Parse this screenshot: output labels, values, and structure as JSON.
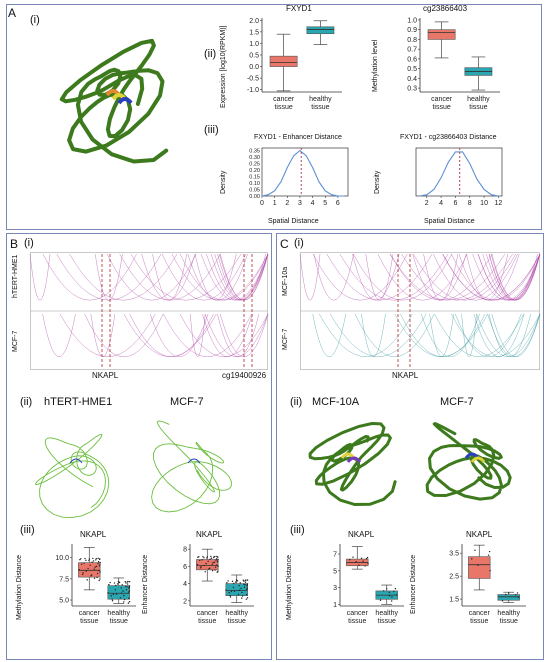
{
  "panels": {
    "A": {
      "letter": "A",
      "sub_i": "(i)",
      "sub_ii": "(ii)",
      "sub_iii": "(iii)",
      "fxyd1": {
        "title": "FXYD1",
        "ylabel": "Expression [log10(RPKM)]",
        "yticks": [
          "2.0",
          "1.5",
          "1.0",
          "0.5",
          "0.0",
          "-0.5",
          "-1.0"
        ],
        "xcats": [
          "cancer\ntissue",
          "healthy\ntissue"
        ]
      },
      "cg": {
        "title": "cg23866403",
        "ylabel": "Methylation level",
        "yticks": [
          "1.0",
          "0.9",
          "0.8",
          "0.7",
          "0.6",
          "0.5",
          "0.4",
          "0.3"
        ],
        "xcats": [
          "cancer\ntissue",
          "healthy\ntissue"
        ]
      },
      "kde1": {
        "title": "FXYD1 - Enhancer Distance",
        "ylabel": "Density",
        "xlabel": "Spatial Distance",
        "xticks": [
          "0",
          "1",
          "2",
          "3",
          "4",
          "5",
          "6"
        ],
        "yticks": [
          "0.35",
          "0.30",
          "0.25",
          "0.20",
          "0.15",
          "0.10",
          "0.05",
          "0.00"
        ]
      },
      "kde2": {
        "title": "FXYD1 - cg23866403 Distance",
        "ylabel": "Density",
        "xlabel": "Spatial Distance",
        "xticks": [
          "2",
          "4",
          "6",
          "8",
          "10",
          "12"
        ]
      }
    },
    "B": {
      "letter": "B",
      "sub_i": "(i)",
      "track1": "hTERT-HME1",
      "track2": "MCF-7",
      "gene": "NKAPL",
      "probe": "cg19400926",
      "sub_ii": "(ii)",
      "struct1": "hTERT-HME1",
      "struct2": "MCF-7",
      "sub_iii": "(iii)",
      "box1": {
        "title": "NKAPL",
        "ylabel": "Methylation Distance",
        "yticks": [
          "10.0",
          "7.5",
          "5.0"
        ],
        "xcats": [
          "cancer\ntissue",
          "healthy\ntissue"
        ]
      },
      "box2": {
        "title": "NKAPL",
        "ylabel": "Enhancer Distance",
        "yticks": [
          "8",
          "6",
          "4",
          "2"
        ],
        "xcats": [
          "cancer\ntissue",
          "healthy\ntissue"
        ]
      }
    },
    "C": {
      "letter": "C",
      "sub_i": "(i)",
      "track1": "MCF-10a",
      "track2": "MCF-7",
      "gene": "NKAPL",
      "sub_ii": "(ii)",
      "struct1": "MCF-10A",
      "struct2": "MCF-7",
      "sub_iii": "(iii)",
      "box1": {
        "title": "NKAPL",
        "ylabel": "Methylation Distance",
        "yticks": [
          "7",
          "5",
          "3",
          "1"
        ],
        "xcats": [
          "cancer\ntissue",
          "healthy\ntissue"
        ]
      },
      "box2": {
        "title": "NKAPL",
        "ylabel": "Enhancer Distance",
        "yticks": [
          "3.5",
          "2.5",
          "1.5"
        ],
        "xcats": [
          "cancer\ntissue",
          "healthy\ntissue"
        ]
      }
    }
  },
  "colors": {
    "cancer": "#e8776a",
    "healthy": "#2aa6b0",
    "mean_line": "#b0304a",
    "kde": "#5d8fd6",
    "structure": "#3d7a1e",
    "arc_pink": "#b04aa8",
    "arc_teal": "#3a9aa0"
  },
  "chart_data": [
    {
      "type": "box",
      "title": "FXYD1",
      "ylabel": "Expression [log10(RPKM)]",
      "categories": [
        "cancer tissue",
        "healthy tissue"
      ],
      "ylim": [
        -1.1,
        2.1
      ],
      "series": [
        {
          "name": "cancer tissue",
          "whisker_low": -1.05,
          "q1": 0.0,
          "median": 0.18,
          "q3": 0.45,
          "whisker_high": 1.4
        },
        {
          "name": "healthy tissue",
          "whisker_low": 0.95,
          "q1": 1.42,
          "median": 1.6,
          "q3": 1.72,
          "whisker_high": 1.98
        }
      ]
    },
    {
      "type": "box",
      "title": "cg23866403",
      "ylabel": "Methylation level",
      "categories": [
        "cancer tissue",
        "healthy tissue"
      ],
      "ylim": [
        0.26,
        1.02
      ],
      "series": [
        {
          "name": "cancer tissue",
          "whisker_low": 0.61,
          "q1": 0.8,
          "median": 0.87,
          "q3": 0.9,
          "whisker_high": 0.98
        },
        {
          "name": "healthy tissue",
          "whisker_low": 0.28,
          "q1": 0.43,
          "median": 0.47,
          "q3": 0.51,
          "whisker_high": 0.62
        }
      ]
    },
    {
      "type": "line",
      "title": "FXYD1 - Enhancer Distance",
      "xlabel": "Spatial Distance",
      "ylabel": "Density",
      "xlim": [
        0,
        6.8
      ],
      "ylim": [
        0,
        0.37
      ],
      "x": [
        0,
        0.5,
        1,
        1.5,
        2,
        2.5,
        3,
        3.5,
        4,
        4.5,
        5,
        5.5,
        6,
        6.5
      ],
      "values": [
        0.0,
        0.01,
        0.04,
        0.11,
        0.22,
        0.31,
        0.35,
        0.31,
        0.22,
        0.11,
        0.04,
        0.01,
        0.0,
        0.0
      ],
      "mean": 3.1
    },
    {
      "type": "line",
      "title": "FXYD1 - cg23866403 Distance",
      "xlabel": "Spatial Distance",
      "ylabel": "Density",
      "xlim": [
        0.5,
        12.5
      ],
      "ylim": [
        0,
        0.37
      ],
      "x": [
        1,
        2,
        3,
        4,
        5,
        6,
        7,
        8,
        9,
        10,
        11,
        12
      ],
      "values": [
        0.0,
        0.01,
        0.05,
        0.14,
        0.26,
        0.34,
        0.34,
        0.25,
        0.13,
        0.05,
        0.01,
        0.0
      ],
      "mean": 6.6
    },
    {
      "type": "box",
      "title": "NKAPL",
      "ylabel": "Methylation Distance",
      "categories": [
        "cancer tissue",
        "healthy tissue"
      ],
      "ylim": [
        4.3,
        11.6
      ],
      "series": [
        {
          "name": "cancer tissue",
          "whisker_low": 6.2,
          "q1": 7.7,
          "median": 8.5,
          "q3": 9.4,
          "whisker_high": 11.2
        },
        {
          "name": "healthy tissue",
          "whisker_low": 4.6,
          "q1": 5.1,
          "median": 5.8,
          "q3": 6.7,
          "whisker_high": 7.6
        }
      ]
    },
    {
      "type": "box",
      "title": "NKAPL",
      "ylabel": "Enhancer Distance",
      "categories": [
        "cancer tissue",
        "healthy tissue"
      ],
      "ylim": [
        1.4,
        8.6
      ],
      "series": [
        {
          "name": "cancer tissue",
          "whisker_low": 4.3,
          "q1": 5.6,
          "median": 6.1,
          "q3": 6.8,
          "whisker_high": 8.0
        },
        {
          "name": "healthy tissue",
          "whisker_low": 1.8,
          "q1": 2.6,
          "median": 3.2,
          "q3": 4.0,
          "whisker_high": 5.0
        }
      ]
    },
    {
      "type": "box",
      "title": "NKAPL",
      "ylabel": "Methylation Distance",
      "categories": [
        "cancer tissue",
        "healthy tissue"
      ],
      "ylim": [
        0.8,
        8.2
      ],
      "series": [
        {
          "name": "cancer tissue",
          "whisker_low": 5.2,
          "q1": 5.6,
          "median": 6.0,
          "q3": 6.4,
          "whisker_high": 7.9
        },
        {
          "name": "healthy tissue",
          "whisker_low": 1.0,
          "q1": 1.6,
          "median": 2.1,
          "q3": 2.6,
          "whisker_high": 3.3
        }
      ]
    },
    {
      "type": "box",
      "title": "NKAPL",
      "ylabel": "Enhancer Distance",
      "categories": [
        "cancer tissue",
        "healthy tissue"
      ],
      "ylim": [
        1.2,
        3.9
      ],
      "series": [
        {
          "name": "cancer tissue",
          "whisker_low": 1.9,
          "q1": 2.4,
          "median": 3.0,
          "q3": 3.35,
          "whisker_high": 3.85
        },
        {
          "name": "healthy tissue",
          "whisker_low": 1.35,
          "q1": 1.45,
          "median": 1.6,
          "q3": 1.7,
          "whisker_high": 1.8
        }
      ]
    }
  ]
}
